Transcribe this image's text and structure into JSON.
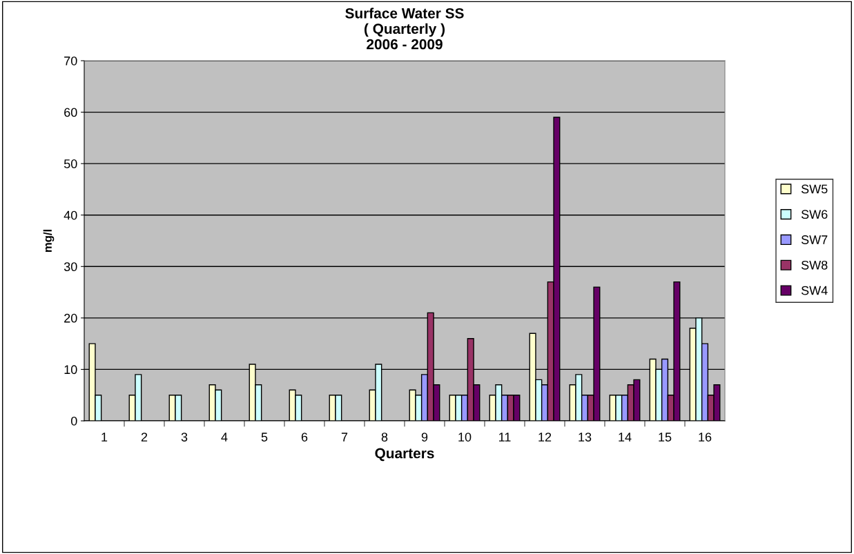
{
  "chart_data": {
    "type": "bar",
    "title": "Surface Water SS\n( Quarterly )\n2006 - 2009",
    "xlabel": "Quarters",
    "ylabel": "mg/l",
    "categories": [
      "1",
      "2",
      "3",
      "4",
      "5",
      "6",
      "7",
      "8",
      "9",
      "10",
      "11",
      "12",
      "13",
      "14",
      "15",
      "16"
    ],
    "series": [
      {
        "name": "SW5",
        "color": "#ffffcc",
        "values": [
          15,
          5,
          5,
          7,
          11,
          6,
          5,
          6,
          6,
          5,
          5,
          17,
          7,
          5,
          12,
          18
        ]
      },
      {
        "name": "SW6",
        "color": "#ccffff",
        "values": [
          5,
          9,
          5,
          6,
          7,
          5,
          5,
          11,
          5,
          5,
          7,
          8,
          9,
          5,
          10,
          20
        ]
      },
      {
        "name": "SW7",
        "color": "#9999ff",
        "values": [
          null,
          null,
          null,
          null,
          null,
          null,
          null,
          null,
          9,
          5,
          5,
          7,
          5,
          5,
          12,
          15
        ]
      },
      {
        "name": "SW8",
        "color": "#993366",
        "values": [
          null,
          null,
          null,
          null,
          null,
          null,
          null,
          null,
          21,
          16,
          5,
          27,
          5,
          7,
          5,
          5
        ]
      },
      {
        "name": "SW4",
        "color": "#660066",
        "values": [
          null,
          null,
          null,
          null,
          null,
          null,
          null,
          null,
          7,
          7,
          5,
          59,
          26,
          8,
          27,
          7
        ]
      }
    ],
    "ylim": [
      0,
      70
    ],
    "yticks": [
      0,
      10,
      20,
      30,
      40,
      50,
      60,
      70
    ],
    "grid": "y",
    "legend": "right"
  }
}
